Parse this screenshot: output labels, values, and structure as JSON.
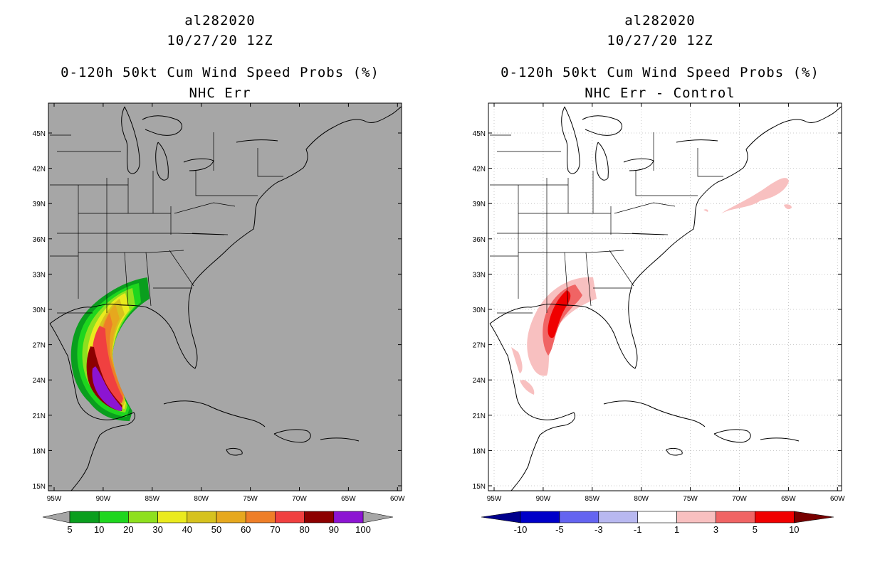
{
  "left": {
    "storm": "al282020",
    "time": "10/27/20 12Z",
    "product": "0-120h 50kt Cum Wind Speed Probs (%)",
    "subtitle": "NHC Err",
    "map_background": "#a6a6a6",
    "lat_labels": [
      "45N",
      "42N",
      "39N",
      "36N",
      "33N",
      "30N",
      "27N",
      "24N",
      "21N",
      "18N",
      "15N"
    ],
    "lon_labels": [
      "95W",
      "90W",
      "85W",
      "80W",
      "75W",
      "70W",
      "65W",
      "60W"
    ],
    "legend": {
      "labels": [
        "5",
        "10",
        "20",
        "30",
        "40",
        "50",
        "60",
        "70",
        "80",
        "90",
        "100"
      ],
      "colors": [
        "#0a9e1e",
        "#1ed61e",
        "#8ee01e",
        "#eaea1e",
        "#d6c21e",
        "#e6a81e",
        "#ee7e28",
        "#f04040",
        "#8c0000",
        "#8c14d2"
      ],
      "arrow_color": "#a6a6a6"
    }
  },
  "right": {
    "storm": "al282020",
    "time": "10/27/20 12Z",
    "product": "0-120h 50kt Cum Wind Speed Probs (%)",
    "subtitle": "NHC Err - Control",
    "map_background": "#ffffff",
    "lat_labels": [
      "45N",
      "42N",
      "39N",
      "36N",
      "33N",
      "30N",
      "27N",
      "24N",
      "21N",
      "18N",
      "15N"
    ],
    "lon_labels": [
      "95W",
      "90W",
      "85W",
      "80W",
      "75W",
      "70W",
      "65W",
      "60W"
    ],
    "legend": {
      "labels": [
        "-10",
        "-5",
        "-3",
        "-1",
        "1",
        "3",
        "5",
        "10"
      ],
      "colors": [
        "#0000c8",
        "#6464f0",
        "#b8b8f0",
        "#ffffff",
        "#f8c0c0",
        "#f06464",
        "#f00000"
      ],
      "left_arrow_color": "#00008c",
      "right_arrow_color": "#780000"
    }
  }
}
